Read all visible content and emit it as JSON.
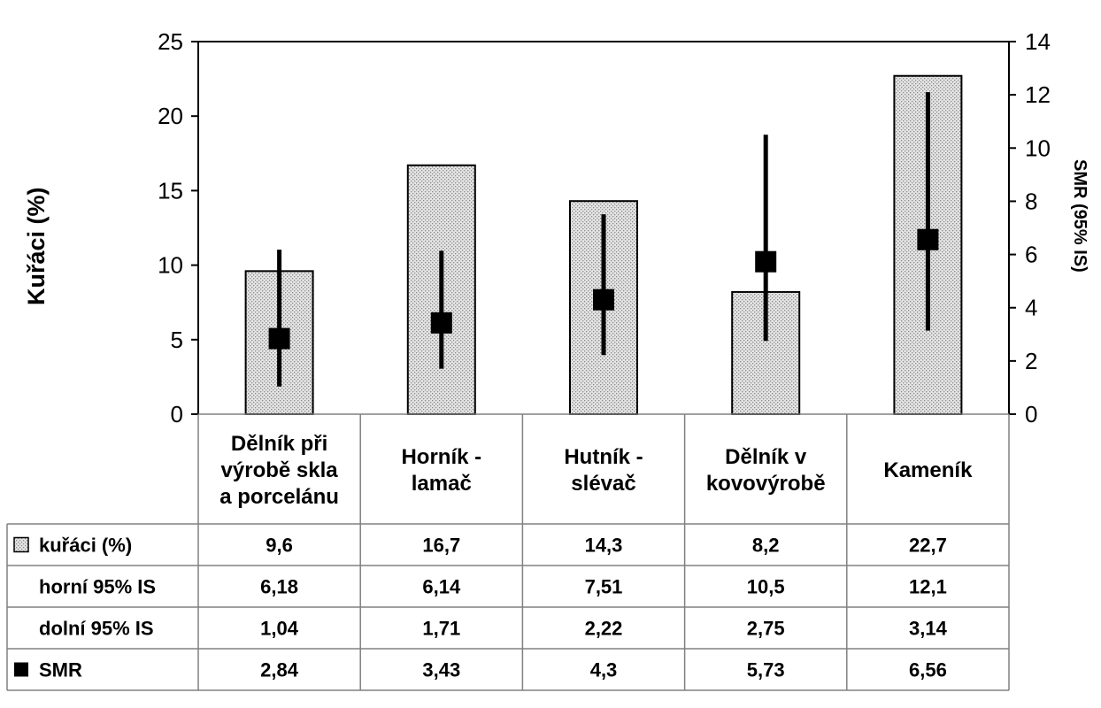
{
  "chart_data": {
    "type": "bar",
    "categories": [
      [
        "Dělník při",
        "výrobě skla",
        "a porcelánu"
      ],
      [
        "Horník -",
        "lamač"
      ],
      [
        "Hutník -",
        "slévač"
      ],
      [
        "Dělník v",
        "kovovýrobě"
      ],
      [
        "Kameník"
      ]
    ],
    "series": [
      {
        "name": "kuřáci (%)",
        "axis": "left",
        "type": "bar",
        "values": [
          9.6,
          16.7,
          14.3,
          8.2,
          22.7
        ]
      },
      {
        "name": "SMR",
        "axis": "right",
        "type": "scatter",
        "values": [
          2.84,
          3.43,
          4.3,
          5.73,
          6.56
        ],
        "error_upper": [
          6.18,
          6.14,
          7.51,
          10.5,
          12.1
        ],
        "error_lower": [
          1.04,
          1.71,
          2.22,
          2.75,
          3.14
        ]
      }
    ],
    "ylabel": "Kuřáci (%)",
    "y2label": "SMR (95% IS)",
    "ylim": [
      0,
      25
    ],
    "y2lim": [
      0,
      14
    ],
    "yticks": [
      "0",
      "5",
      "10",
      "15",
      "20",
      "25"
    ],
    "y2ticks": [
      "0",
      "2",
      "4",
      "6",
      "8",
      "10",
      "12",
      "14"
    ],
    "grid": false,
    "legend": "data-table",
    "data_table": {
      "rows": [
        {
          "label": "kuřáci (%)",
          "marker": "hatched-square",
          "cells": [
            "9,6",
            "16,7",
            "14,3",
            "8,2",
            "22,7"
          ]
        },
        {
          "label": "horní 95% IS",
          "marker": "none",
          "cells": [
            "6,18",
            "6,14",
            "7,51",
            "10,5",
            "12,1"
          ]
        },
        {
          "label": "dolní 95% IS",
          "marker": "none",
          "cells": [
            "1,04",
            "1,71",
            "2,22",
            "2,75",
            "3,14"
          ]
        },
        {
          "label": "SMR",
          "marker": "black-square",
          "cells": [
            "2,84",
            "3,43",
            "4,3",
            "5,73",
            "6,56"
          ]
        }
      ]
    },
    "colors": {
      "bar_fill": "#e4e4e4",
      "bar_dots": "#8a8a8a",
      "marker": "#000000",
      "axis": "#000000",
      "table_border": "#808080"
    }
  }
}
